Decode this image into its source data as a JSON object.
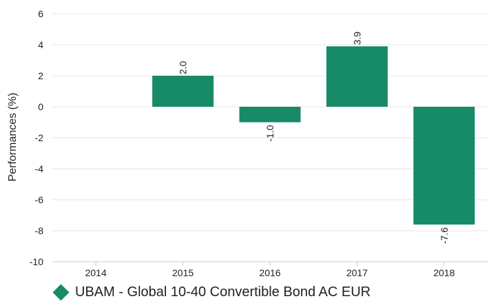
{
  "chart_data": {
    "type": "bar",
    "categories": [
      "2014",
      "2015",
      "2016",
      "2017",
      "2018"
    ],
    "series": [
      {
        "name": "UBAM - Global 10-40 Convertible Bond AC EUR",
        "values": [
          null,
          2.0,
          -1.0,
          3.9,
          -7.6
        ],
        "labels": [
          "",
          "2.0",
          "-1.0",
          "3.9",
          "-7.6"
        ]
      }
    ],
    "ylabel": "Performances (%)",
    "xlabel": "",
    "ylim": [
      -10,
      6
    ],
    "yticks": [
      6,
      4,
      2,
      0,
      -2,
      -4,
      -6,
      -8,
      -10
    ],
    "grid": true,
    "legend_position": "bottom-left"
  },
  "colors": {
    "bar": "#178a67",
    "grid": "#e6e6e6",
    "axis": "#c8c8c8",
    "text": "#222222"
  }
}
